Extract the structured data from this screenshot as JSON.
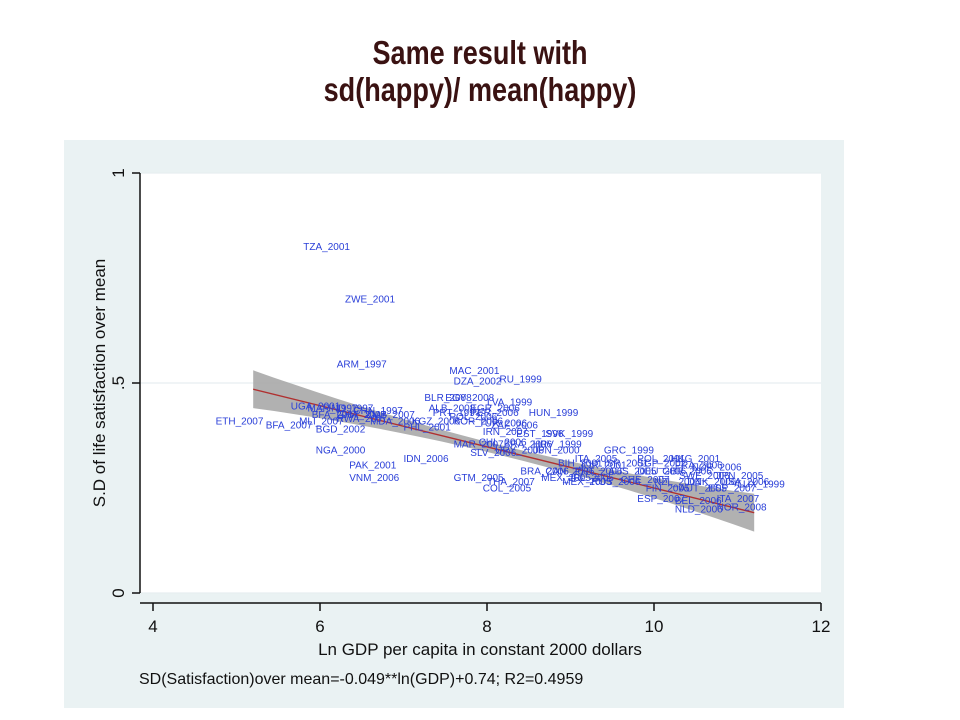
{
  "slide": {
    "title_line1": "Same result with",
    "title_line2": "sd(happy)/ mean(happy)"
  },
  "colors": {
    "title": "#3a1212",
    "panel_bg": "#eaf2f3",
    "plot_bg": "#ffffff",
    "labels": "#2a3fd8",
    "fit_line": "#b03030",
    "ci_band": "#a9a9a9"
  },
  "chart_data": {
    "type": "scatter",
    "title": "",
    "xlabel": "Ln GDP per capita in constant 2000 dollars",
    "ylabel": "S.D of life satisfaction over mean",
    "note": "SD(Satisfaction)over mean=-0.049**ln(GDP)+0.74; R2=0.4959",
    "xlim": [
      4,
      12
    ],
    "ylim": [
      0,
      1
    ],
    "x_ticks": [
      {
        "value": 4,
        "label": "4"
      },
      {
        "value": 6,
        "label": "6"
      },
      {
        "value": 8,
        "label": "8"
      },
      {
        "value": 10,
        "label": "10"
      },
      {
        "value": 12,
        "label": "12"
      }
    ],
    "y_ticks": [
      {
        "value": 0,
        "label": "0"
      },
      {
        "value": 0.5,
        "label": ".5"
      },
      {
        "value": 1,
        "label": "1"
      }
    ],
    "grid": true,
    "fit": {
      "slope": -0.049,
      "intercept": 0.74,
      "x_range": [
        5.2,
        11.2
      ],
      "ci_halfwidth_ends": 0.045,
      "ci_halfwidth_mid": 0.012
    },
    "points": [
      {
        "label": "TZA_2001",
        "x": 5.8,
        "y": 0.825
      },
      {
        "label": "ZWE_2001",
        "x": 6.3,
        "y": 0.7
      },
      {
        "label": "ARM_1997",
        "x": 6.2,
        "y": 0.545
      },
      {
        "label": "MAC_2001",
        "x": 7.55,
        "y": 0.53
      },
      {
        "label": "DZA_2002",
        "x": 7.6,
        "y": 0.505
      },
      {
        "label": "RU_1999",
        "x": 8.15,
        "y": 0.51
      },
      {
        "label": "BLR_2008",
        "x": 7.25,
        "y": 0.465
      },
      {
        "label": "EGY_2008",
        "x": 7.5,
        "y": 0.465
      },
      {
        "label": "LVA_1999",
        "x": 8.0,
        "y": 0.455
      },
      {
        "label": "UGA_2001",
        "x": 5.65,
        "y": 0.445
      },
      {
        "label": "MAR_1997",
        "x": 5.85,
        "y": 0.44
      },
      {
        "label": "IND_1997",
        "x": 6.1,
        "y": 0.44
      },
      {
        "label": "CHN_1997",
        "x": 6.4,
        "y": 0.435
      },
      {
        "label": "ALB_2008",
        "x": 7.3,
        "y": 0.44
      },
      {
        "label": "EGR_2006",
        "x": 7.8,
        "y": 0.44
      },
      {
        "label": "PRT_1997",
        "x": 7.35,
        "y": 0.43
      },
      {
        "label": "PER_2006",
        "x": 7.8,
        "y": 0.43
      },
      {
        "label": "HUN_1999",
        "x": 8.5,
        "y": 0.43
      },
      {
        "label": "BFA_2007",
        "x": 5.9,
        "y": 0.425
      },
      {
        "label": "GHA_2007",
        "x": 6.2,
        "y": 0.425
      },
      {
        "label": "ZMB_2007",
        "x": 6.55,
        "y": 0.425
      },
      {
        "label": "POL_2006",
        "x": 7.55,
        "y": 0.42
      },
      {
        "label": "ETH_2007",
        "x": 4.75,
        "y": 0.41
      },
      {
        "label": "BFA_2007",
        "x": 5.35,
        "y": 0.4
      },
      {
        "label": "MLI_2007",
        "x": 5.75,
        "y": 0.41
      },
      {
        "label": "RWA_2007",
        "x": 6.2,
        "y": 0.415
      },
      {
        "label": "MDA_2006",
        "x": 6.6,
        "y": 0.41
      },
      {
        "label": "KGZ_2006",
        "x": 7.1,
        "y": 0.41
      },
      {
        "label": "KOR_2006",
        "x": 7.6,
        "y": 0.41
      },
      {
        "label": "TUR_2006",
        "x": 7.9,
        "y": 0.405
      },
      {
        "label": "ZAF_2006",
        "x": 8.05,
        "y": 0.4
      },
      {
        "label": "BGD_2002",
        "x": 5.95,
        "y": 0.39
      },
      {
        "label": "PHL_2001",
        "x": 7.0,
        "y": 0.395
      },
      {
        "label": "IRN_2007",
        "x": 7.95,
        "y": 0.385
      },
      {
        "label": "EST_1996",
        "x": 8.35,
        "y": 0.38
      },
      {
        "label": "SVK_1999",
        "x": 8.7,
        "y": 0.38
      },
      {
        "label": "MAR_2007",
        "x": 7.6,
        "y": 0.355
      },
      {
        "label": "CHL_2006",
        "x": 7.9,
        "y": 0.36
      },
      {
        "label": "BRA_2006",
        "x": 8.2,
        "y": 0.355
      },
      {
        "label": "HRV_1999",
        "x": 8.55,
        "y": 0.355
      },
      {
        "label": "NGA_2000",
        "x": 5.95,
        "y": 0.34
      },
      {
        "label": "SLV_2006",
        "x": 7.8,
        "y": 0.335
      },
      {
        "label": "URY_2006",
        "x": 8.1,
        "y": 0.34
      },
      {
        "label": "JPN_2000",
        "x": 8.55,
        "y": 0.34
      },
      {
        "label": "IDN_2006",
        "x": 7.0,
        "y": 0.32
      },
      {
        "label": "ITA_2005",
        "x": 9.05,
        "y": 0.32
      },
      {
        "label": "GRC_1999",
        "x": 9.4,
        "y": 0.34
      },
      {
        "label": "POL_2001",
        "x": 9.8,
        "y": 0.32
      },
      {
        "label": "HKG_2001",
        "x": 10.2,
        "y": 0.32
      },
      {
        "label": "NOR_2006",
        "x": 10.45,
        "y": 0.3
      },
      {
        "label": "PAK_2001",
        "x": 6.35,
        "y": 0.305
      },
      {
        "label": "BIH_2001",
        "x": 8.85,
        "y": 0.31
      },
      {
        "label": "JOR_2001",
        "x": 9.1,
        "y": 0.305
      },
      {
        "label": "ISR_2001",
        "x": 9.4,
        "y": 0.31
      },
      {
        "label": "SGP_2002",
        "x": 9.8,
        "y": 0.31
      },
      {
        "label": "FRA_2006",
        "x": 10.25,
        "y": 0.305
      },
      {
        "label": "BRA_2006",
        "x": 8.4,
        "y": 0.29
      },
      {
        "label": "CAN_2006",
        "x": 8.7,
        "y": 0.29
      },
      {
        "label": "PRT_2006",
        "x": 9.05,
        "y": 0.29
      },
      {
        "label": "AUS_2005",
        "x": 9.45,
        "y": 0.29
      },
      {
        "label": "DEU_2006",
        "x": 9.8,
        "y": 0.29
      },
      {
        "label": "GBR_2006",
        "x": 10.1,
        "y": 0.29
      },
      {
        "label": "VNM_2006",
        "x": 6.35,
        "y": 0.275
      },
      {
        "label": "GTM_2005",
        "x": 7.6,
        "y": 0.275
      },
      {
        "label": "MEX_2005",
        "x": 8.65,
        "y": 0.275
      },
      {
        "label": "IRL_2005",
        "x": 9.0,
        "y": 0.275
      },
      {
        "label": "SWE_2006",
        "x": 10.3,
        "y": 0.28
      },
      {
        "label": "JPN_2005",
        "x": 10.75,
        "y": 0.28
      },
      {
        "label": "THA_2007",
        "x": 8.0,
        "y": 0.265
      },
      {
        "label": "MEX_2005",
        "x": 8.9,
        "y": 0.265
      },
      {
        "label": "RUS_2006",
        "x": 9.25,
        "y": 0.265
      },
      {
        "label": "CHE_2007",
        "x": 9.6,
        "y": 0.27
      },
      {
        "label": "NZL_2004",
        "x": 10.0,
        "y": 0.265
      },
      {
        "label": "DNK_2006",
        "x": 10.4,
        "y": 0.265
      },
      {
        "label": "USA_2006",
        "x": 10.8,
        "y": 0.265
      },
      {
        "label": "LUX_1999",
        "x": 11.0,
        "y": 0.26
      },
      {
        "label": "COL_2005",
        "x": 7.95,
        "y": 0.25
      },
      {
        "label": "FIN_2005",
        "x": 9.9,
        "y": 0.25
      },
      {
        "label": "AUT_2005",
        "x": 10.3,
        "y": 0.25
      },
      {
        "label": "ESP_2007",
        "x": 10.65,
        "y": 0.25
      },
      {
        "label": "ESP_2007",
        "x": 9.8,
        "y": 0.225
      },
      {
        "label": "BEL_2006",
        "x": 10.25,
        "y": 0.22
      },
      {
        "label": "ITA_2007",
        "x": 10.75,
        "y": 0.225
      },
      {
        "label": "NLD_2006",
        "x": 10.25,
        "y": 0.2
      },
      {
        "label": "NOR_2008",
        "x": 10.75,
        "y": 0.205
      }
    ]
  }
}
